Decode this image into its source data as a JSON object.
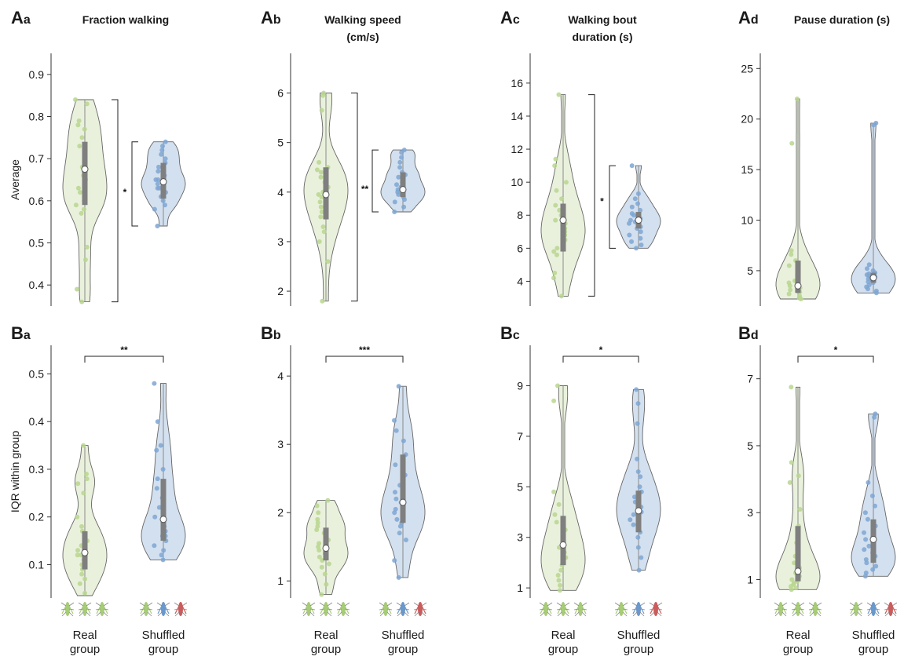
{
  "figure": {
    "row_ylabels": [
      "Average",
      "IQR within group"
    ],
    "group_labels": [
      [
        "Real",
        "group"
      ],
      [
        "Shuffled",
        "group"
      ]
    ]
  },
  "colors": {
    "real_fill": "#e9f1dc",
    "real_point": "#b9d68f",
    "shuffled_fill": "#d3e0ef",
    "shuffled_point": "#7ea6d2",
    "outline": "#666666",
    "box": "#7f7f7f",
    "fly_green": "#a7cc77",
    "fly_blue": "#6a98cc",
    "fly_red": "#cc5b5b"
  },
  "chart_data": [
    {
      "panel": "Aa",
      "type": "violin",
      "title": [
        "Fraction walking"
      ],
      "ylabel": "Average",
      "ylim": [
        0.35,
        0.95
      ],
      "yticks": [
        0.4,
        0.5,
        0.6,
        0.7,
        0.8,
        0.9
      ],
      "ytick_labels": [
        "0.4",
        "0.5",
        "0.6",
        "0.7",
        "0.8",
        "0.9"
      ],
      "bracket": "side",
      "significance": "*",
      "series": [
        {
          "name": "Real group",
          "range": [
            0.36,
            0.84
          ],
          "median": 0.675,
          "q1": 0.59,
          "q3": 0.74,
          "mode": 0.67,
          "points": [
            0.84,
            0.83,
            0.79,
            0.78,
            0.77,
            0.75,
            0.73,
            0.72,
            0.7,
            0.68,
            0.67,
            0.66,
            0.65,
            0.63,
            0.62,
            0.61,
            0.6,
            0.59,
            0.58,
            0.57,
            0.49,
            0.46,
            0.39,
            0.36
          ]
        },
        {
          "name": "Shuffled group",
          "range": [
            0.54,
            0.74
          ],
          "median": 0.645,
          "q1": 0.605,
          "q3": 0.69,
          "mode": 0.65,
          "points": [
            0.74,
            0.73,
            0.72,
            0.71,
            0.7,
            0.69,
            0.68,
            0.67,
            0.66,
            0.65,
            0.65,
            0.64,
            0.63,
            0.63,
            0.62,
            0.61,
            0.6,
            0.59,
            0.58,
            0.54
          ]
        }
      ]
    },
    {
      "panel": "Ab",
      "type": "violin",
      "title": [
        "Walking speed",
        "(cm/s)"
      ],
      "ylim": [
        1.7,
        6.8
      ],
      "yticks": [
        2,
        3,
        4,
        5,
        6
      ],
      "ytick_labels": [
        "2",
        "3",
        "4",
        "5",
        "6"
      ],
      "bracket": "side",
      "significance": "**",
      "series": [
        {
          "name": "Real group",
          "range": [
            1.8,
            6.0
          ],
          "median": 3.95,
          "q1": 3.45,
          "q3": 4.5,
          "mode": 4.1,
          "points": [
            6.0,
            5.95,
            5.65,
            4.6,
            4.5,
            4.45,
            4.4,
            4.3,
            4.2,
            4.1,
            4.0,
            3.95,
            3.9,
            3.8,
            3.7,
            3.6,
            3.5,
            3.3,
            3.2,
            3.0,
            2.6,
            1.8
          ]
        },
        {
          "name": "Shuffled group",
          "range": [
            3.6,
            4.85
          ],
          "median": 4.05,
          "q1": 3.9,
          "q3": 4.4,
          "mode": 4.1,
          "points": [
            4.85,
            4.8,
            4.7,
            4.6,
            4.5,
            4.4,
            4.35,
            4.3,
            4.2,
            4.15,
            4.1,
            4.05,
            4.0,
            3.95,
            3.9,
            3.85,
            3.8,
            3.7,
            3.6
          ]
        }
      ]
    },
    {
      "panel": "Ac",
      "type": "violin",
      "title": [
        "Walking bout",
        "duration (s)"
      ],
      "ylim": [
        2.5,
        17.8
      ],
      "yticks": [
        4,
        6,
        8,
        10,
        12,
        14,
        16
      ],
      "ytick_labels": [
        "4",
        "6",
        "8",
        "10",
        "12",
        "14",
        "16"
      ],
      "bracket": "side",
      "significance": "*",
      "series": [
        {
          "name": "Real group",
          "range": [
            3.1,
            15.3
          ],
          "median": 7.7,
          "q1": 5.8,
          "q3": 8.7,
          "mode": 7.8,
          "points": [
            15.3,
            11.4,
            11.0,
            10.0,
            9.5,
            9.0,
            8.6,
            8.3,
            8.0,
            7.7,
            7.5,
            7.2,
            7.0,
            6.8,
            6.5,
            6.3,
            6.0,
            5.8,
            5.6,
            4.5,
            4.2,
            3.1
          ]
        },
        {
          "name": "Shuffled group",
          "range": [
            6.0,
            11.0
          ],
          "median": 7.7,
          "q1": 7.2,
          "q3": 8.2,
          "mode": 7.7,
          "points": [
            11.0,
            9.3,
            9.0,
            8.7,
            8.5,
            8.3,
            8.1,
            8.0,
            7.8,
            7.7,
            7.6,
            7.5,
            7.3,
            7.2,
            7.0,
            6.8,
            6.6,
            6.4,
            6.2,
            6.0
          ]
        }
      ]
    },
    {
      "panel": "Ad",
      "type": "violin",
      "title": [
        "Pause duration (s)"
      ],
      "ylim": [
        1.5,
        26.5
      ],
      "yticks": [
        5,
        10,
        15,
        20,
        25
      ],
      "ytick_labels": [
        "5",
        "10",
        "15",
        "20",
        "25"
      ],
      "bracket": "none",
      "significance": "",
      "series": [
        {
          "name": "Real group",
          "range": [
            2.2,
            22.0
          ],
          "median": 3.5,
          "q1": 2.8,
          "q3": 6.0,
          "mode": 3.5,
          "points": [
            22.0,
            17.6,
            7.0,
            6.6,
            6.0,
            5.5,
            5.0,
            4.5,
            4.2,
            4.0,
            3.8,
            3.5,
            3.3,
            3.1,
            3.0,
            2.9,
            2.7,
            2.5,
            2.3,
            2.2
          ]
        },
        {
          "name": "Shuffled group",
          "range": [
            2.8,
            19.6
          ],
          "median": 4.3,
          "q1": 3.8,
          "q3": 4.8,
          "mode": 4.3,
          "points": [
            19.6,
            19.4,
            5.6,
            5.2,
            5.0,
            4.8,
            4.7,
            4.6,
            4.5,
            4.4,
            4.3,
            4.2,
            4.1,
            4.0,
            3.9,
            3.8,
            3.6,
            3.4,
            3.2,
            3.0,
            2.8
          ]
        }
      ]
    },
    {
      "panel": "Ba",
      "type": "violin",
      "title": [],
      "ylabel": "IQR within group",
      "ylim": [
        0.03,
        0.56
      ],
      "yticks": [
        0.1,
        0.2,
        0.3,
        0.4,
        0.5
      ],
      "ytick_labels": [
        "0.1",
        "0.2",
        "0.3",
        "0.4",
        "0.5"
      ],
      "bracket": "top",
      "significance": "**",
      "series": [
        {
          "name": "Real group",
          "range": [
            0.035,
            0.35
          ],
          "median": 0.125,
          "q1": 0.09,
          "q3": 0.17,
          "mode": 0.12,
          "points": [
            0.35,
            0.29,
            0.28,
            0.27,
            0.25,
            0.2,
            0.18,
            0.17,
            0.16,
            0.15,
            0.14,
            0.13,
            0.12,
            0.12,
            0.11,
            0.1,
            0.09,
            0.08,
            0.07,
            0.06,
            0.04
          ]
        },
        {
          "name": "Shuffled group",
          "range": [
            0.11,
            0.48
          ],
          "median": 0.195,
          "q1": 0.15,
          "q3": 0.28,
          "mode": 0.17,
          "points": [
            0.48,
            0.4,
            0.35,
            0.34,
            0.3,
            0.28,
            0.26,
            0.24,
            0.22,
            0.2,
            0.19,
            0.18,
            0.17,
            0.16,
            0.16,
            0.15,
            0.14,
            0.13,
            0.12,
            0.11
          ]
        }
      ]
    },
    {
      "panel": "Bb",
      "type": "violin",
      "title": [],
      "ylim": [
        0.75,
        4.45
      ],
      "yticks": [
        1,
        2,
        3,
        4
      ],
      "ytick_labels": [
        "1",
        "2",
        "3",
        "4"
      ],
      "bracket": "top",
      "significance": "***",
      "series": [
        {
          "name": "Real group",
          "range": [
            0.8,
            2.18
          ],
          "median": 1.48,
          "q1": 1.3,
          "q3": 1.78,
          "mode": 1.5,
          "points": [
            2.18,
            2.1,
            2.0,
            1.9,
            1.85,
            1.8,
            1.75,
            1.7,
            1.6,
            1.55,
            1.5,
            1.45,
            1.4,
            1.35,
            1.3,
            1.25,
            1.2,
            1.1,
            0.95,
            0.8
          ]
        },
        {
          "name": "Shuffled group",
          "range": [
            1.05,
            3.85
          ],
          "median": 2.15,
          "q1": 1.85,
          "q3": 2.85,
          "mode": 2.1,
          "points": [
            3.85,
            3.35,
            3.2,
            3.05,
            2.85,
            2.7,
            2.55,
            2.4,
            2.3,
            2.2,
            2.15,
            2.05,
            2.0,
            1.9,
            1.85,
            1.8,
            1.7,
            1.6,
            1.3,
            1.05
          ]
        }
      ]
    },
    {
      "panel": "Bc",
      "type": "violin",
      "title": [],
      "ylim": [
        0.6,
        10.6
      ],
      "yticks": [
        1,
        3,
        5,
        7,
        9
      ],
      "ytick_labels": [
        "1",
        "3",
        "5",
        "7",
        "9"
      ],
      "bracket": "top",
      "significance": "*",
      "series": [
        {
          "name": "Real group",
          "range": [
            0.9,
            9.0
          ],
          "median": 2.7,
          "q1": 1.9,
          "q3": 3.85,
          "mode": 2.5,
          "points": [
            9.0,
            8.4,
            4.8,
            4.3,
            3.9,
            3.6,
            3.3,
            3.0,
            2.8,
            2.6,
            2.4,
            2.2,
            2.0,
            1.9,
            1.7,
            1.5,
            1.3,
            1.1,
            0.9
          ]
        },
        {
          "name": "Shuffled group",
          "range": [
            1.7,
            8.85
          ],
          "median": 4.05,
          "q1": 3.2,
          "q3": 4.85,
          "mode": 4.0,
          "points": [
            8.85,
            8.3,
            7.5,
            6.1,
            5.6,
            5.4,
            5.0,
            4.8,
            4.6,
            4.4,
            4.2,
            4.0,
            3.9,
            3.7,
            3.5,
            3.2,
            3.0,
            2.6,
            2.2,
            1.7
          ]
        }
      ]
    },
    {
      "panel": "Bd",
      "type": "violin",
      "title": [],
      "ylim": [
        0.45,
        8.0
      ],
      "yticks": [
        1,
        3,
        5,
        7
      ],
      "ytick_labels": [
        "1",
        "3",
        "5",
        "7"
      ],
      "bracket": "top",
      "significance": "*",
      "series": [
        {
          "name": "Real group",
          "range": [
            0.7,
            6.75
          ],
          "median": 1.25,
          "q1": 0.95,
          "q3": 2.6,
          "mode": 1.1,
          "points": [
            6.75,
            4.5,
            4.1,
            3.9,
            3.1,
            2.6,
            2.1,
            1.9,
            1.7,
            1.5,
            1.35,
            1.2,
            1.1,
            1.0,
            0.95,
            0.9,
            0.85,
            0.8,
            0.75,
            0.7
          ]
        },
        {
          "name": "Shuffled group",
          "range": [
            1.1,
            5.95
          ],
          "median": 2.2,
          "q1": 1.5,
          "q3": 2.8,
          "mode": 2.0,
          "points": [
            5.95,
            5.85,
            3.9,
            3.5,
            3.2,
            3.0,
            2.8,
            2.6,
            2.4,
            2.2,
            2.0,
            1.9,
            1.8,
            1.7,
            1.6,
            1.5,
            1.4,
            1.3,
            1.2,
            1.1
          ]
        }
      ]
    }
  ]
}
